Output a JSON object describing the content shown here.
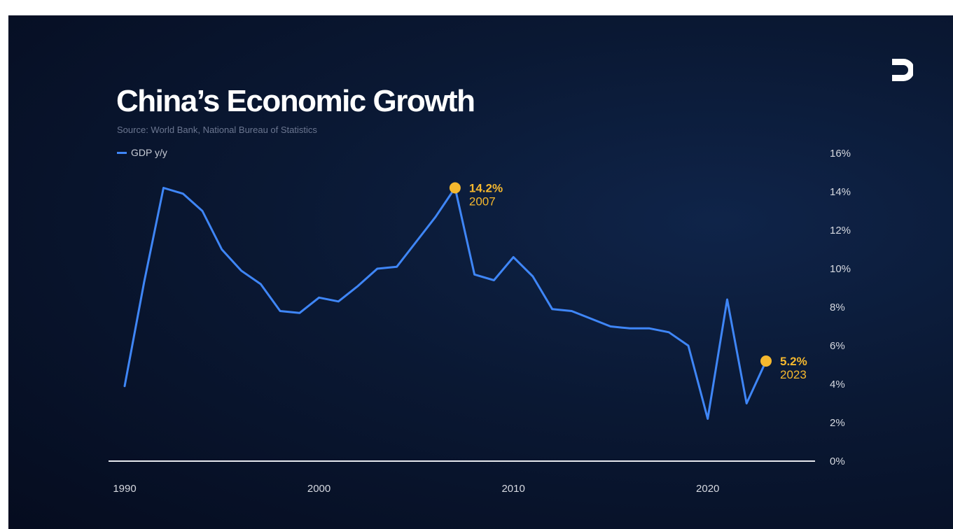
{
  "chart_data": {
    "type": "line",
    "title": "China’s Economic Growth",
    "subtitle": "Source: World Bank, National Bureau of Statistics",
    "xlabel": "",
    "ylabel": "",
    "xlim": [
      1990,
      2023
    ],
    "ylim": [
      0,
      16
    ],
    "x_ticks": [
      1990,
      2000,
      2010,
      2020
    ],
    "x_tick_labels": [
      "1990",
      "2000",
      "2010",
      "2020"
    ],
    "y_ticks": [
      0,
      2,
      4,
      6,
      8,
      10,
      12,
      14,
      16
    ],
    "y_tick_labels": [
      "0%",
      "2%",
      "4%",
      "6%",
      "8%",
      "10%",
      "12%",
      "14%",
      "16%"
    ],
    "y_axis_side": "right",
    "grid": false,
    "legend_position": "top-left",
    "series": [
      {
        "name": "GDP y/y",
        "color": "#3f86f7",
        "x": [
          1990,
          1991,
          1992,
          1993,
          1994,
          1995,
          1996,
          1997,
          1998,
          1999,
          2000,
          2001,
          2002,
          2003,
          2004,
          2005,
          2006,
          2007,
          2008,
          2009,
          2010,
          2011,
          2012,
          2013,
          2014,
          2015,
          2016,
          2017,
          2018,
          2019,
          2020,
          2021,
          2022,
          2023
        ],
        "y": [
          3.9,
          9.3,
          14.2,
          13.9,
          13.0,
          11.0,
          9.9,
          9.2,
          7.8,
          7.7,
          8.5,
          8.3,
          9.1,
          10.0,
          10.1,
          11.4,
          12.7,
          14.2,
          9.7,
          9.4,
          10.6,
          9.6,
          7.9,
          7.8,
          7.4,
          7.0,
          6.9,
          6.9,
          6.7,
          6.0,
          2.2,
          8.4,
          3.0,
          5.2
        ]
      }
    ],
    "annotations": [
      {
        "x": 2007,
        "y": 14.2,
        "value_label": "14.2%",
        "year_label": "2007",
        "color": "#f5b82e"
      },
      {
        "x": 2023,
        "y": 5.2,
        "value_label": "5.2%",
        "year_label": "2023",
        "color": "#f5b82e"
      }
    ]
  },
  "logo_icon": "brand-mark-icon"
}
